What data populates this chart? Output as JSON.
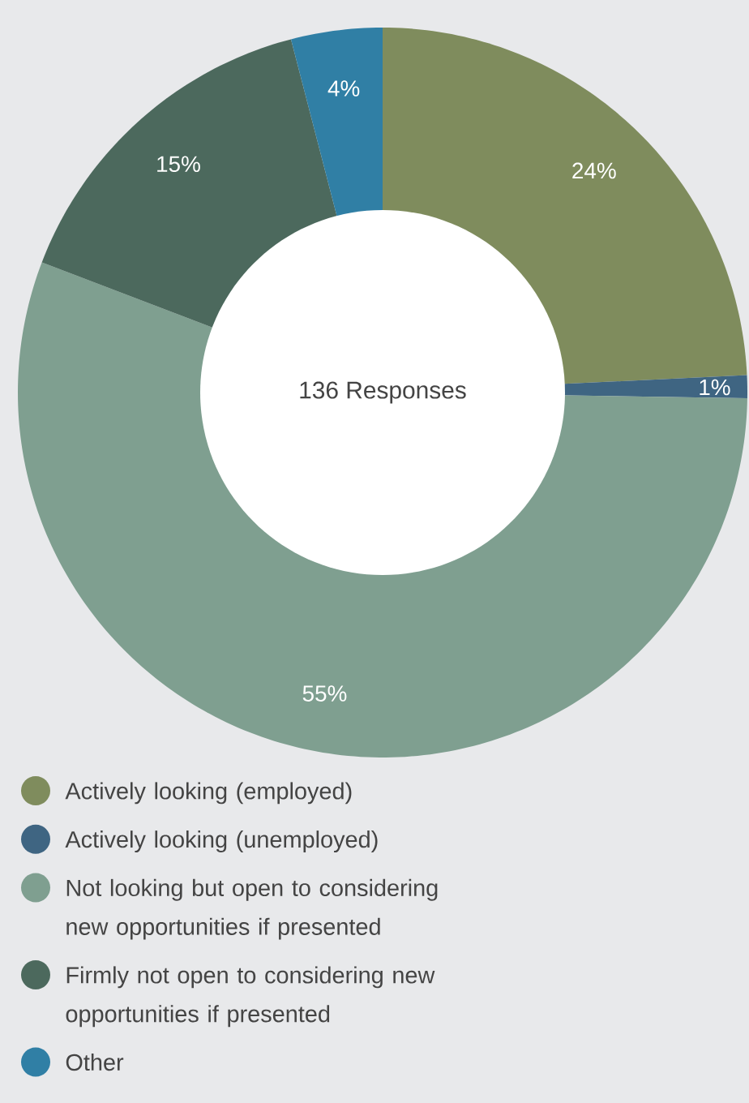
{
  "chart_data": {
    "type": "donut",
    "categories": [
      "Actively looking (employed)",
      "Actively looking (unemployed)",
      "Not looking but open to considering new opportunities if presented",
      "Firmly not open to considering new opportunities if presented",
      "Other"
    ],
    "values": [
      24,
      1,
      55,
      15,
      4
    ],
    "colors": [
      "#7f8c5d",
      "#3f6582",
      "#7f9f90",
      "#4c695d",
      "#307fa5"
    ],
    "value_labels": [
      "24%",
      "1%",
      "55%",
      "15%",
      "4%"
    ],
    "annotations": [
      "136 Responses"
    ],
    "legend": "bottom"
  }
}
